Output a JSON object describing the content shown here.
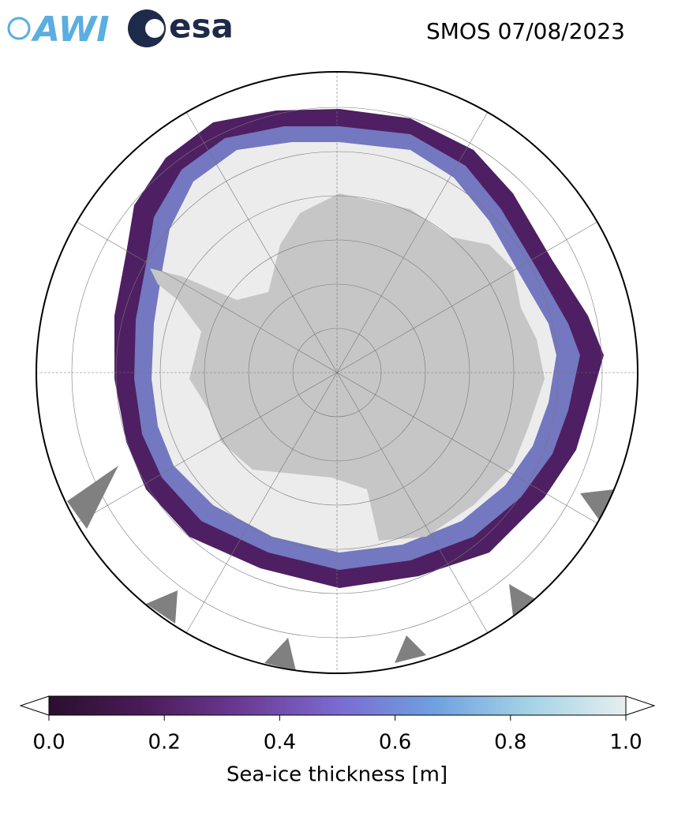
{
  "header": {
    "logos": [
      "AWI",
      "esa"
    ],
    "title": "SMOS 07/08/2023"
  },
  "colorbar": {
    "label": "Sea-ice thickness [m]",
    "lim": [
      0,
      1
    ],
    "ticks": [
      {
        "value": 0,
        "label": "0.0"
      },
      {
        "value": 0.2,
        "label": "0.2"
      },
      {
        "value": 0.4,
        "label": "0.4"
      },
      {
        "value": 0.6,
        "label": "0.6"
      },
      {
        "value": 0.8,
        "label": "0.8"
      },
      {
        "value": 1,
        "label": "1.0"
      }
    ],
    "colors": [
      "#2a0f2e",
      "#4b1b5a",
      "#6b3a94",
      "#7b6ad0",
      "#6fa0e0",
      "#a4d3e6",
      "#e6eeee"
    ]
  }
}
